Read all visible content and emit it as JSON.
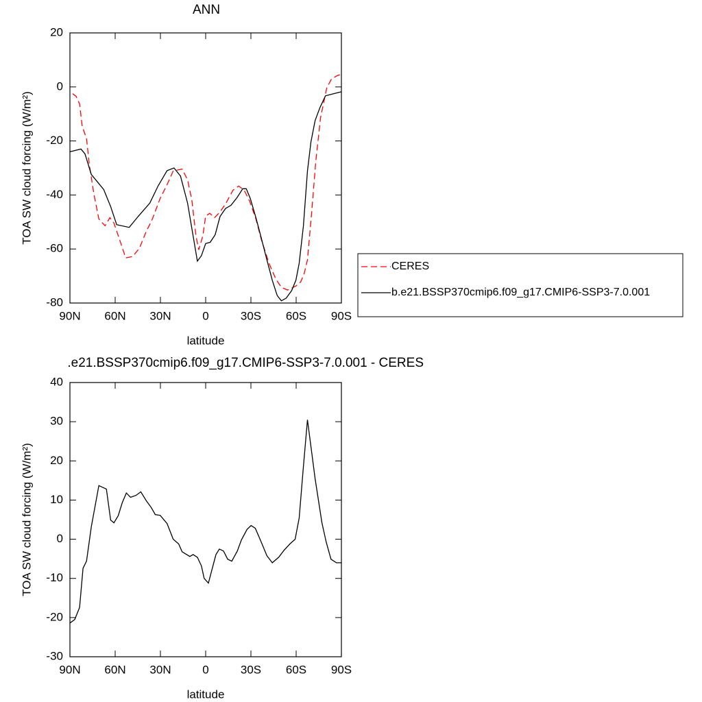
{
  "chart_data": [
    {
      "type": "line",
      "title": "ANN",
      "xlabel": "latitude",
      "ylabel": "TOA SW cloud forcing (W/m²)",
      "xlim": [
        90,
        -90
      ],
      "xticks": [
        {
          "value": 90,
          "label": "90N"
        },
        {
          "value": 60,
          "label": "60N"
        },
        {
          "value": 30,
          "label": "30N"
        },
        0,
        {
          "value": -30,
          "label": "30S"
        },
        {
          "value": -60,
          "label": "60S"
        },
        {
          "value": -90,
          "label": "90S"
        }
      ],
      "ylim": [
        20,
        -80
      ],
      "yticks": [
        20,
        0,
        -20,
        -40,
        -60,
        -80
      ],
      "legend": "right",
      "series": [
        {
          "name": "CERES",
          "color": "#ff0000",
          "style": "dashed",
          "x": [
            88.2,
            85.9,
            83.6,
            81.8,
            79,
            77.2,
            74,
            70.8,
            66.7,
            63.5,
            60.8,
            57.1,
            53,
            48.4,
            43.9,
            39.3,
            35.7,
            30.2,
            25.6,
            21.5,
            15.6,
            12,
            9.2,
            6.4,
            4.6,
            1.9,
            0,
            -2.7,
            -5.9,
            -9.5,
            -13.2,
            -18.2,
            -21.9,
            -25.5,
            -29.2,
            -33.3,
            -36.9,
            -42,
            -46.5,
            -50.2,
            -54.3,
            -59.8,
            -63,
            -65.3,
            -67.5,
            -70.3,
            -73,
            -76.2,
            -80.3,
            -83.5,
            -87.6,
            -90
          ],
          "values": [
            -2.5,
            -3.5,
            -6.3,
            -14.7,
            -19,
            -28.6,
            -40,
            -48.9,
            -51.4,
            -48.4,
            -50.4,
            -56.5,
            -63.3,
            -62.8,
            -59.7,
            -53.4,
            -49.4,
            -41.3,
            -36.2,
            -31.1,
            -30.4,
            -34.4,
            -41.8,
            -55.2,
            -60.3,
            -55.2,
            -47.8,
            -46.8,
            -48.4,
            -46.3,
            -43.3,
            -38.2,
            -36.7,
            -38.2,
            -42.3,
            -48.9,
            -56.5,
            -65.3,
            -71.1,
            -74.2,
            -75.2,
            -73.7,
            -72.2,
            -69.1,
            -64,
            -46.3,
            -27.6,
            -11.4,
            -0.3,
            3,
            4.3,
            4.6
          ]
        },
        {
          "name": "b.e21.BSSP370cmip6.f09_g17.CMIP6-SSP3-7.0.001",
          "color": "#000000",
          "style": "solid",
          "x": [
            90,
            82.7,
            80,
            75.8,
            72,
            67.6,
            63,
            59,
            50.7,
            44.8,
            37,
            31.6,
            25.6,
            21,
            16.7,
            12,
            5.5,
            2.8,
            0,
            -3,
            -6.3,
            -9.5,
            -13.2,
            -16.8,
            -21,
            -24.6,
            -26.9,
            -29.6,
            -33.3,
            -36.9,
            -40.6,
            -44.2,
            -47.4,
            -50.2,
            -53.4,
            -57,
            -59.8,
            -62,
            -64.8,
            -67.5,
            -69.8,
            -72.6,
            -75.8,
            -79.4,
            -86.3,
            -90
          ],
          "values": [
            -24,
            -23,
            -24.8,
            -32.4,
            -35,
            -38,
            -44.3,
            -51,
            -52,
            -48,
            -43,
            -36.7,
            -31,
            -30,
            -33,
            -43,
            -64.5,
            -62.5,
            -58,
            -57.5,
            -54.7,
            -48,
            -45,
            -43.8,
            -40.8,
            -37.7,
            -37.7,
            -41.3,
            -48.4,
            -56,
            -64,
            -71.6,
            -77.2,
            -79.2,
            -78.2,
            -75.4,
            -71.6,
            -65.3,
            -51.4,
            -31.1,
            -20.3,
            -12.4,
            -7.6,
            -3.3,
            -2.3,
            -1.8
          ]
        }
      ]
    },
    {
      "type": "line",
      "title": ".e21.BSSP370cmip6.f09_g17.CMIP6-SSP3-7.0.001 - CERES",
      "xlabel": "latitude",
      "ylabel": "TOA SW cloud forcing (W/m²)",
      "xlim": [
        90,
        -90
      ],
      "xticks": [
        {
          "value": 90,
          "label": "90N"
        },
        {
          "value": 60,
          "label": "60N"
        },
        {
          "value": 30,
          "label": "30N"
        },
        0,
        {
          "value": -30,
          "label": "30S"
        },
        {
          "value": -60,
          "label": "60S"
        },
        {
          "value": -90,
          "label": "90S"
        }
      ],
      "ylim": [
        40,
        -30
      ],
      "yticks": [
        40,
        30,
        20,
        10,
        0,
        -10,
        -20,
        -30
      ],
      "series": [
        {
          "color": "#000000",
          "style": "solid",
          "x": [
            90,
            86.8,
            83.6,
            81.3,
            79,
            75.8,
            70.8,
            65.8,
            63,
            60.8,
            58,
            55.3,
            52.6,
            49.8,
            46.2,
            43,
            39.3,
            36.1,
            33.4,
            30.2,
            25.6,
            21.5,
            17.9,
            15.6,
            10.5,
            8.3,
            5.5,
            2.8,
            1,
            -1.8,
            -6.8,
            -9.1,
            -11.8,
            -14.6,
            -17.3,
            -21,
            -23.7,
            -27.4,
            -30.1,
            -32.9,
            -36.5,
            -40.6,
            -44.2,
            -48.4,
            -52,
            -56.1,
            -59.3,
            -62,
            -64.8,
            -67.5,
            -72.6,
            -77.1,
            -79.9,
            -83.1,
            -86.7,
            -90
          ],
          "values": [
            -21.4,
            -20.5,
            -17.4,
            -7.4,
            -5.6,
            3.2,
            13.7,
            12.8,
            4.9,
            4.2,
            6,
            9.3,
            11.8,
            10.7,
            11.2,
            12.1,
            9.8,
            8.1,
            6.3,
            6.1,
            4,
            0,
            -1.2,
            -3.2,
            -4.4,
            -3.9,
            -4.6,
            -6.8,
            -10,
            -11.2,
            -3.9,
            -2.5,
            -3,
            -5.1,
            -5.6,
            -3,
            -0.2,
            2.5,
            3.5,
            2.8,
            -0.4,
            -4.2,
            -6,
            -4.6,
            -2.8,
            -1.1,
            0,
            5.4,
            18.6,
            30.5,
            15.4,
            4.2,
            -0.7,
            -5.1,
            -6,
            -6
          ]
        }
      ]
    }
  ]
}
